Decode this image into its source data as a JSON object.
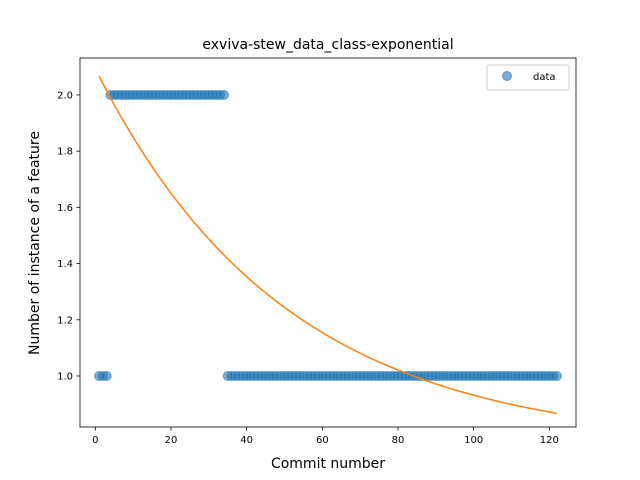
{
  "chart_data": {
    "type": "scatter",
    "title": "exviva-stew_data_class-exponential",
    "xlabel": "Commit number",
    "ylabel": "Number of instance of a feature",
    "xlim": [
      -4.05,
      127.05
    ],
    "ylim": [
      0.8185,
      2.1315
    ],
    "xticks": [
      0,
      20,
      40,
      60,
      80,
      100,
      120
    ],
    "xtick_labels": [
      "0",
      "20",
      "40",
      "60",
      "80",
      "100",
      "120"
    ],
    "yticks": [
      1.0,
      1.2,
      1.4,
      1.6,
      1.8,
      2.0
    ],
    "ytick_labels": [
      "1.0",
      "1.2",
      "1.4",
      "1.6",
      "1.8",
      "2.0"
    ],
    "legend": {
      "position": "top-right",
      "entries": [
        "data"
      ]
    },
    "grid": false,
    "colors": {
      "points": "#1f77b4",
      "fit": "#ff7f0e"
    },
    "series": [
      {
        "name": "data",
        "kind": "scatter",
        "segments": [
          {
            "x_from": 1,
            "x_to": 3,
            "y": 1.0
          },
          {
            "x_from": 4,
            "x_to": 34,
            "y": 2.0
          },
          {
            "x_from": 35,
            "x_to": 122,
            "y": 1.0
          }
        ]
      },
      {
        "kind": "line",
        "function": "exponential",
        "params": {
          "a": 1.343,
          "b": 0.02,
          "c": 0.75
        },
        "x_range": [
          1,
          122
        ]
      }
    ]
  }
}
